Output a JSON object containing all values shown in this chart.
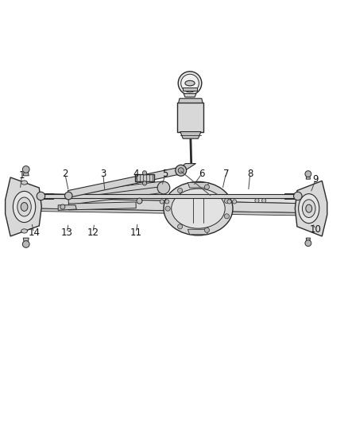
{
  "bg_color": "#ffffff",
  "fig_width": 4.38,
  "fig_height": 5.33,
  "dpi": 100,
  "outline_color": "#2a2a2a",
  "fill_light": "#e8e8e8",
  "fill_mid": "#d0d0d0",
  "fill_dark": "#b0b0b0",
  "callout_fontsize": 8.5,
  "leader_color": "#444444",
  "callouts": [
    [
      1,
      0.06,
      0.605,
      0.055,
      0.565
    ],
    [
      2,
      0.185,
      0.61,
      0.195,
      0.56
    ],
    [
      3,
      0.295,
      0.61,
      0.3,
      0.56
    ],
    [
      4,
      0.39,
      0.61,
      0.395,
      0.575
    ],
    [
      5,
      0.475,
      0.61,
      0.465,
      0.575
    ],
    [
      6,
      0.58,
      0.61,
      0.555,
      0.575
    ],
    [
      7,
      0.65,
      0.61,
      0.64,
      0.565
    ],
    [
      8,
      0.72,
      0.61,
      0.715,
      0.56
    ],
    [
      9,
      0.91,
      0.595,
      0.895,
      0.555
    ],
    [
      10,
      0.91,
      0.45,
      0.9,
      0.468
    ],
    [
      11,
      0.39,
      0.44,
      0.395,
      0.47
    ],
    [
      12,
      0.265,
      0.44,
      0.27,
      0.468
    ],
    [
      13,
      0.19,
      0.44,
      0.195,
      0.468
    ],
    [
      14,
      0.095,
      0.44,
      0.088,
      0.47
    ]
  ]
}
